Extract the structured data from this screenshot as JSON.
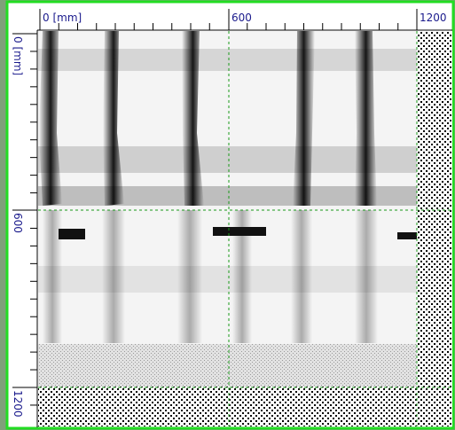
{
  "top_ruler": {
    "labels": [
      "0 [mm]",
      "600",
      "1200"
    ]
  },
  "left_ruler": {
    "labels": [
      "0 [mm]",
      "600",
      "1200"
    ]
  }
}
